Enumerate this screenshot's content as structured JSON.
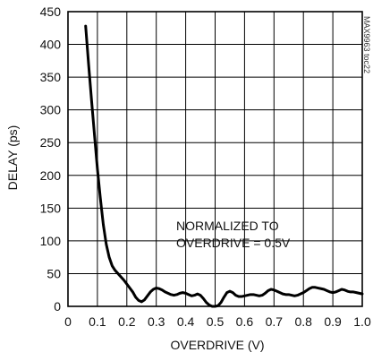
{
  "chart_data": {
    "type": "line",
    "title": "",
    "xlabel": "OVERDRIVE (V)",
    "ylabel": "DELAY (ps)",
    "xlim": [
      0,
      1.0
    ],
    "ylim": [
      0,
      450
    ],
    "x_ticks": [
      "0",
      "0.1",
      "0.2",
      "0.3",
      "0.4",
      "0.5",
      "0.6",
      "0.7",
      "0.8",
      "0.9",
      "1.0"
    ],
    "y_ticks": [
      "0",
      "50",
      "100",
      "150",
      "200",
      "250",
      "300",
      "350",
      "400",
      "450"
    ],
    "grid": true,
    "annotation_lines": [
      "NORMALIZED TO",
      "OVERDRIVE = 0.5V"
    ],
    "reference_id": "MAX9963 toc22",
    "series": [
      {
        "points": [
          [
            0.06,
            428
          ],
          [
            0.07,
            370
          ],
          [
            0.08,
            315
          ],
          [
            0.09,
            262
          ],
          [
            0.1,
            210
          ],
          [
            0.11,
            165
          ],
          [
            0.12,
            125
          ],
          [
            0.13,
            95
          ],
          [
            0.14,
            75
          ],
          [
            0.15,
            62
          ],
          [
            0.16,
            55
          ],
          [
            0.17,
            50
          ],
          [
            0.18,
            45
          ],
          [
            0.19,
            40
          ],
          [
            0.2,
            34
          ],
          [
            0.21,
            28
          ],
          [
            0.22,
            22
          ],
          [
            0.23,
            14
          ],
          [
            0.24,
            9
          ],
          [
            0.25,
            7
          ],
          [
            0.26,
            10
          ],
          [
            0.27,
            16
          ],
          [
            0.28,
            22
          ],
          [
            0.29,
            26
          ],
          [
            0.3,
            28
          ],
          [
            0.31,
            27
          ],
          [
            0.32,
            25
          ],
          [
            0.33,
            22
          ],
          [
            0.34,
            20
          ],
          [
            0.35,
            18
          ],
          [
            0.36,
            17
          ],
          [
            0.37,
            18
          ],
          [
            0.38,
            20
          ],
          [
            0.39,
            21
          ],
          [
            0.4,
            20
          ],
          [
            0.41,
            18
          ],
          [
            0.42,
            16
          ],
          [
            0.43,
            17
          ],
          [
            0.44,
            19
          ],
          [
            0.45,
            17
          ],
          [
            0.46,
            12
          ],
          [
            0.47,
            6
          ],
          [
            0.48,
            2
          ],
          [
            0.49,
            0
          ],
          [
            0.5,
            0
          ],
          [
            0.51,
            1
          ],
          [
            0.52,
            6
          ],
          [
            0.53,
            14
          ],
          [
            0.54,
            21
          ],
          [
            0.55,
            23
          ],
          [
            0.56,
            21
          ],
          [
            0.57,
            17
          ],
          [
            0.58,
            15
          ],
          [
            0.59,
            15
          ],
          [
            0.6,
            16
          ],
          [
            0.61,
            17
          ],
          [
            0.62,
            18
          ],
          [
            0.63,
            18
          ],
          [
            0.64,
            17
          ],
          [
            0.65,
            16
          ],
          [
            0.66,
            17
          ],
          [
            0.67,
            20
          ],
          [
            0.68,
            24
          ],
          [
            0.69,
            26
          ],
          [
            0.7,
            25
          ],
          [
            0.71,
            23
          ],
          [
            0.72,
            21
          ],
          [
            0.73,
            19
          ],
          [
            0.74,
            18
          ],
          [
            0.75,
            18
          ],
          [
            0.76,
            17
          ],
          [
            0.77,
            16
          ],
          [
            0.78,
            17
          ],
          [
            0.79,
            19
          ],
          [
            0.8,
            21
          ],
          [
            0.81,
            24
          ],
          [
            0.82,
            27
          ],
          [
            0.83,
            29
          ],
          [
            0.84,
            29
          ],
          [
            0.85,
            28
          ],
          [
            0.86,
            27
          ],
          [
            0.87,
            26
          ],
          [
            0.88,
            24
          ],
          [
            0.89,
            22
          ],
          [
            0.9,
            21
          ],
          [
            0.91,
            22
          ],
          [
            0.92,
            24
          ],
          [
            0.93,
            26
          ],
          [
            0.94,
            25
          ],
          [
            0.95,
            23
          ],
          [
            0.96,
            22
          ],
          [
            0.97,
            22
          ],
          [
            0.98,
            21
          ],
          [
            0.99,
            20
          ],
          [
            1.0,
            19
          ]
        ]
      }
    ]
  }
}
